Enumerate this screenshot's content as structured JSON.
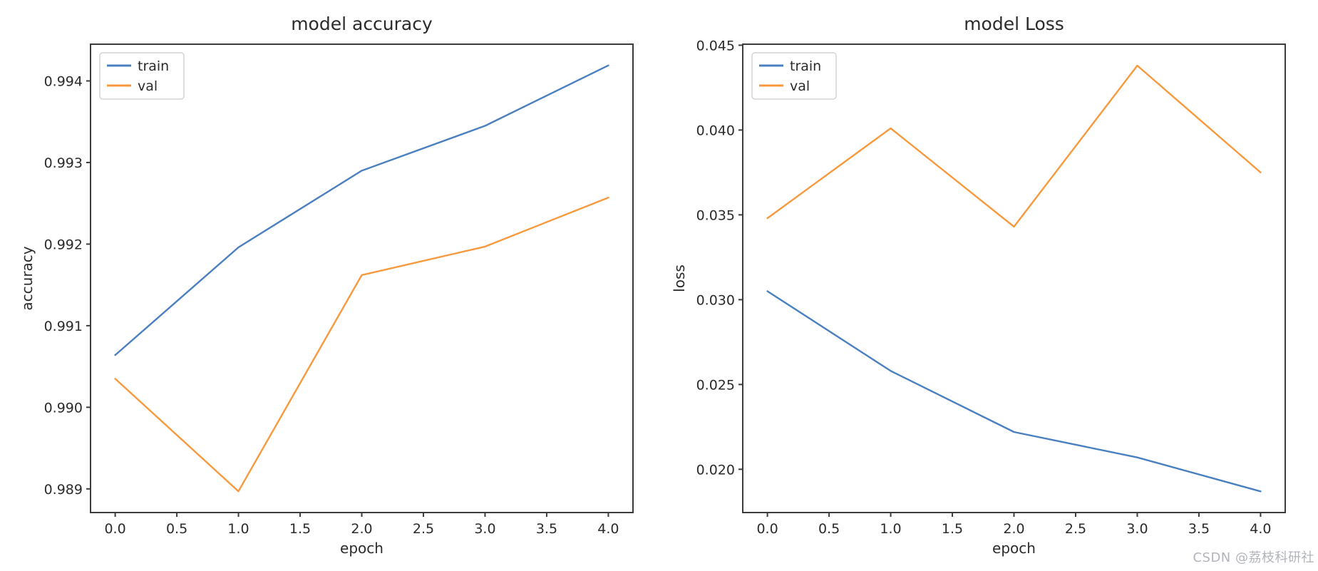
{
  "watermark": {
    "text": "CSDN @荔枝科研社"
  },
  "colors": {
    "train": "#4a80c0",
    "val": "#f8993d",
    "spine": "#3c3c3c",
    "tick_label": "#2b2b2b",
    "title": "#2b2b2b",
    "legend_border": "#d4d4d4",
    "watermark": "#b1b4ba"
  },
  "chart_data": [
    {
      "id": "accuracy-chart",
      "type": "line",
      "title": "model accuracy",
      "xlabel": "epoch",
      "ylabel": "accuracy",
      "x": [
        0,
        1,
        2,
        3,
        4
      ],
      "series": [
        {
          "name": "train",
          "color_key": "train",
          "values": [
            0.99064,
            0.99196,
            0.9929,
            0.99345,
            0.99419
          ]
        },
        {
          "name": "val",
          "color_key": "val",
          "values": [
            0.99035,
            0.98897,
            0.99162,
            0.99197,
            0.99257
          ]
        }
      ],
      "xlim": [
        -0.2,
        4.2
      ],
      "ylim": [
        0.98871,
        0.99445
      ],
      "xticks": [
        {
          "v": 0.0,
          "label": "0.0"
        },
        {
          "v": 0.5,
          "label": "0.5"
        },
        {
          "v": 1.0,
          "label": "1.0"
        },
        {
          "v": 1.5,
          "label": "1.5"
        },
        {
          "v": 2.0,
          "label": "2.0"
        },
        {
          "v": 2.5,
          "label": "2.5"
        },
        {
          "v": 3.0,
          "label": "3.0"
        },
        {
          "v": 3.5,
          "label": "3.5"
        },
        {
          "v": 4.0,
          "label": "4.0"
        }
      ],
      "yticks": [
        {
          "v": 0.989,
          "label": "0.989"
        },
        {
          "v": 0.99,
          "label": "0.990"
        },
        {
          "v": 0.991,
          "label": "0.991"
        },
        {
          "v": 0.992,
          "label": "0.992"
        },
        {
          "v": 0.993,
          "label": "0.993"
        },
        {
          "v": 0.994,
          "label": "0.994"
        }
      ],
      "legend": {
        "position": "upper left",
        "entries": [
          "train",
          "val"
        ]
      },
      "grid": false
    },
    {
      "id": "loss-chart",
      "type": "line",
      "title": "model Loss",
      "xlabel": "epoch",
      "ylabel": "loss",
      "x": [
        0,
        1,
        2,
        3,
        4
      ],
      "series": [
        {
          "name": "train",
          "color_key": "train",
          "values": [
            0.0305,
            0.0258,
            0.0222,
            0.0207,
            0.0187
          ]
        },
        {
          "name": "val",
          "color_key": "val",
          "values": [
            0.0348,
            0.0401,
            0.0343,
            0.0438,
            0.0375
          ]
        }
      ],
      "xlim": [
        -0.2,
        4.2
      ],
      "ylim": [
        0.01745,
        0.04506
      ],
      "xticks": [
        {
          "v": 0.0,
          "label": "0.0"
        },
        {
          "v": 0.5,
          "label": "0.5"
        },
        {
          "v": 1.0,
          "label": "1.0"
        },
        {
          "v": 1.5,
          "label": "1.5"
        },
        {
          "v": 2.0,
          "label": "2.0"
        },
        {
          "v": 2.5,
          "label": "2.5"
        },
        {
          "v": 3.0,
          "label": "3.0"
        },
        {
          "v": 3.5,
          "label": "3.5"
        },
        {
          "v": 4.0,
          "label": "4.0"
        }
      ],
      "yticks": [
        {
          "v": 0.02,
          "label": "0.020"
        },
        {
          "v": 0.025,
          "label": "0.025"
        },
        {
          "v": 0.03,
          "label": "0.030"
        },
        {
          "v": 0.035,
          "label": "0.035"
        },
        {
          "v": 0.04,
          "label": "0.040"
        },
        {
          "v": 0.045,
          "label": "0.045"
        }
      ],
      "legend": {
        "position": "upper left",
        "entries": [
          "train",
          "val"
        ]
      },
      "grid": false
    }
  ]
}
